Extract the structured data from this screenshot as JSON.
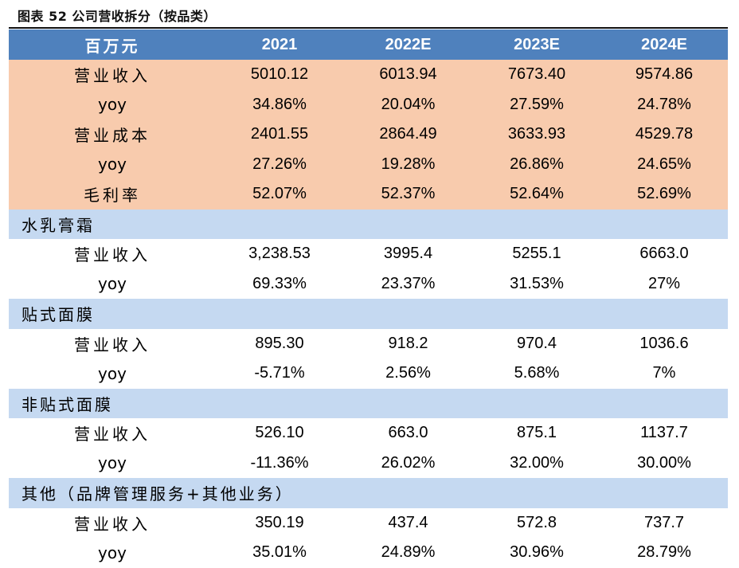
{
  "caption": "图表 52 公司营收拆分（按品类）",
  "header": [
    "百万元",
    "2021",
    "2022E",
    "2023E",
    "2024E"
  ],
  "summary_rows": [
    {
      "label": "营业收入",
      "values": [
        "5010.12",
        "6013.94",
        "7673.40",
        "9574.86"
      ]
    },
    {
      "label": "yoy",
      "values": [
        "34.86%",
        "20.04%",
        "27.59%",
        "24.78%"
      ]
    },
    {
      "label": "营业成本",
      "values": [
        "2401.55",
        "2864.49",
        "3633.93",
        "4529.78"
      ]
    },
    {
      "label": "yoy",
      "values": [
        "27.26%",
        "19.28%",
        "26.86%",
        "24.65%"
      ]
    },
    {
      "label": "毛利率",
      "values": [
        "52.07%",
        "52.37%",
        "52.64%",
        "52.69%"
      ]
    }
  ],
  "segments": [
    {
      "name": "水乳膏霜",
      "rows": [
        {
          "label": "营业收入",
          "values": [
            "3,238.53",
            "3995.4",
            "5255.1",
            "6663.0"
          ]
        },
        {
          "label": "yoy",
          "values": [
            "69.33%",
            "23.37%",
            "31.53%",
            "27%"
          ]
        }
      ]
    },
    {
      "name": "贴式面膜",
      "rows": [
        {
          "label": "营业收入",
          "values": [
            "895.30",
            "918.2",
            "970.4",
            "1036.6"
          ]
        },
        {
          "label": "yoy",
          "values": [
            "-5.71%",
            "2.56%",
            "5.68%",
            "7%"
          ]
        }
      ]
    },
    {
      "name": "非贴式面膜",
      "rows": [
        {
          "label": "营业收入",
          "values": [
            "526.10",
            "663.0",
            "875.1",
            "1137.7"
          ]
        },
        {
          "label": "yoy",
          "values": [
            "-11.36%",
            "26.02%",
            "32.00%",
            "30.00%"
          ]
        }
      ]
    },
    {
      "name": "其他（品牌管理服务+其他业务）",
      "rows": [
        {
          "label": "营业收入",
          "values": [
            "350.19",
            "437.4",
            "572.8",
            "737.7"
          ]
        },
        {
          "label": "yoy",
          "values": [
            "35.01%",
            "24.89%",
            "30.96%",
            "28.79%"
          ]
        }
      ]
    }
  ],
  "colors": {
    "header_bg": "#4f81bd",
    "summary_bg": "#f8cbad",
    "section_bg": "#c5d9f1"
  }
}
